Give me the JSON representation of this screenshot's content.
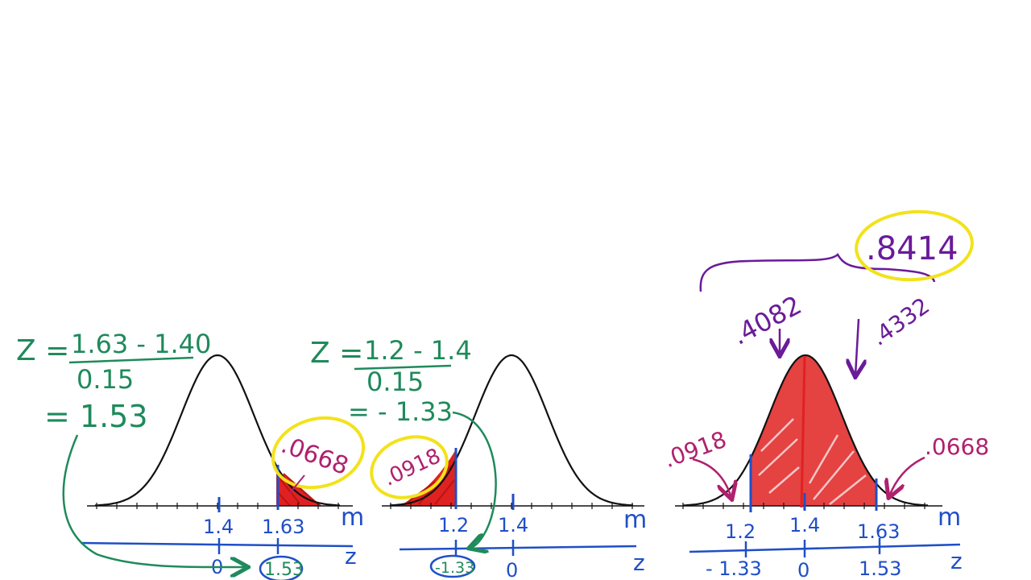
{
  "colors": {
    "green": "#1f8a5b",
    "blue": "#1f4fc7",
    "red": "#e02121",
    "magenta": "#b0206e",
    "purple": "#6a1b9a",
    "yellow": "#f2e21b",
    "black": "#111111"
  },
  "panel1": {
    "formula_z": "Z =",
    "formula_num": "1.63 - 1.40",
    "formula_den": "0.15",
    "result": "= 1.53",
    "tick_mean": "1.4",
    "tick_value": "1.63",
    "axis_m": "m",
    "z_zero": "0",
    "z_value": "1.53",
    "axis_z": "z",
    "area": ".0668"
  },
  "panel2": {
    "formula_z": "Z =",
    "formula_num": "1.2 - 1.4",
    "formula_den": "0.15",
    "result": "= - 1.33",
    "tick_value": "1.2",
    "tick_mean": "1.4",
    "axis_m": "m",
    "z_value": "-1.33",
    "z_zero": "0",
    "axis_z": "z",
    "area": ".0918"
  },
  "panel3": {
    "total": ".8414",
    "left_half": ".4082",
    "right_half": ".4332",
    "left_tail": ".0918",
    "right_tail": ".0668",
    "tick_left": "1.2",
    "tick_mean": "1.4",
    "tick_right": "1.63",
    "axis_m": "m",
    "z_left": "- 1.33",
    "z_zero": "0",
    "z_right": "1.53",
    "axis_z": "z"
  }
}
